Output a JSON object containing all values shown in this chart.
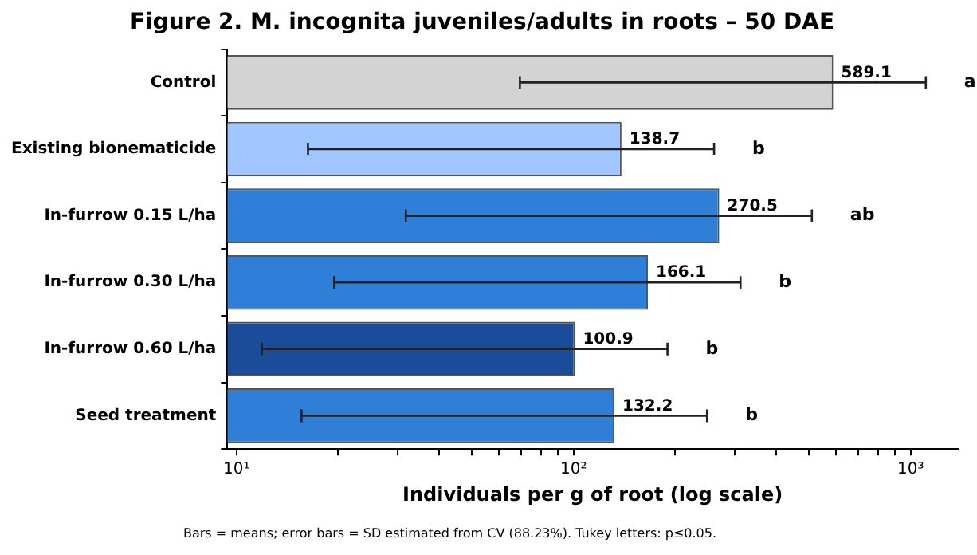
{
  "chart_data": {
    "type": "bar",
    "orientation": "horizontal",
    "log": "x",
    "title": "Figure 2. M. incognita juveniles/adults in roots – 50 DAE",
    "xlabel": "Individuals per g of root (log scale)",
    "categories": [
      "Control",
      "Existing bionematicide",
      "In-furrow 0.15 L/ha",
      "In-furrow 0.30 L/ha",
      "In-furrow 0.60 L/ha",
      "Seed treatment"
    ],
    "values": [
      589.1,
      138.7,
      270.5,
      166.1,
      100.9,
      132.2
    ],
    "errors": [
      519.8,
      122.4,
      238.7,
      146.6,
      89.0,
      116.6
    ],
    "colors": [
      "#d3d3d3",
      "#a2c6ff",
      "#2f7ed8",
      "#2f7ed8",
      "#1b4c9a",
      "#2f7ed8"
    ],
    "data_labels": true,
    "xlim": [
      9.4,
      1380
    ],
    "xticks": [
      {
        "value": 10,
        "label": "10¹"
      },
      {
        "value": 20,
        "label": null
      },
      {
        "value": 30,
        "label": null
      },
      {
        "value": 40,
        "label": null
      },
      {
        "value": 50,
        "label": null
      },
      {
        "value": 60,
        "label": null
      },
      {
        "value": 70,
        "label": null
      },
      {
        "value": 80,
        "label": null
      },
      {
        "value": 90,
        "label": null
      },
      {
        "value": 100,
        "label": "10²"
      },
      {
        "value": 200,
        "label": null
      },
      {
        "value": 300,
        "label": null
      },
      {
        "value": 400,
        "label": null
      },
      {
        "value": 500,
        "label": null
      },
      {
        "value": 600,
        "label": null
      },
      {
        "value": 700,
        "label": null
      },
      {
        "value": 800,
        "label": null
      },
      {
        "value": 900,
        "label": null
      },
      {
        "value": 1000,
        "label": "10³"
      }
    ],
    "grid": false,
    "legend": false,
    "annotations": [
      "a",
      "b",
      "ab",
      "b",
      "b",
      "b",
      "Bars = means; error bars = SD estimated from CV (88.23%). Tukey letters: p≤0.05."
    ]
  }
}
